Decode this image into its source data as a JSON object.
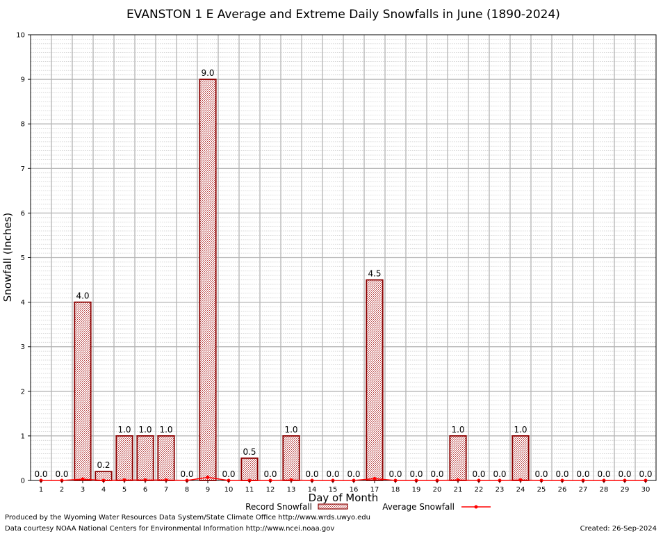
{
  "chart_data": {
    "type": "bar",
    "title": "EVANSTON 1 E Average and Extreme Daily Snowfalls in June (1890-2024)",
    "xlabel": "Day of Month",
    "ylabel": "Snowfall (Inches)",
    "ylim": [
      0,
      10
    ],
    "yticks": [
      "0",
      "1",
      "2",
      "3",
      "4",
      "5",
      "6",
      "7",
      "8",
      "9",
      "10"
    ],
    "categories": [
      "1",
      "2",
      "3",
      "4",
      "5",
      "6",
      "7",
      "8",
      "9",
      "10",
      "11",
      "12",
      "13",
      "14",
      "15",
      "16",
      "17",
      "18",
      "19",
      "20",
      "21",
      "22",
      "23",
      "24",
      "25",
      "26",
      "27",
      "28",
      "29",
      "30"
    ],
    "series": [
      {
        "name": "Record Snowfall",
        "type": "bar",
        "values": [
          0.0,
          0.0,
          4.0,
          0.2,
          1.0,
          1.0,
          1.0,
          0.0,
          9.0,
          0.0,
          0.5,
          0.0,
          1.0,
          0.0,
          0.0,
          0.0,
          4.5,
          0.0,
          0.0,
          0.0,
          1.0,
          0.0,
          0.0,
          1.0,
          0.0,
          0.0,
          0.0,
          0.0,
          0.0,
          0.0
        ],
        "labels": [
          "0.0",
          "0.0",
          "4.0",
          "0.2",
          "1.0",
          "1.0",
          "1.0",
          "0.0",
          "9.0",
          "0.0",
          "0.5",
          "0.0",
          "1.0",
          "0.0",
          "0.0",
          "0.0",
          "4.5",
          "0.0",
          "0.0",
          "0.0",
          "1.0",
          "0.0",
          "0.0",
          "1.0",
          "0.0",
          "0.0",
          "0.0",
          "0.0",
          "0.0",
          "0.0"
        ]
      },
      {
        "name": "Average Snowfall",
        "type": "line",
        "values": [
          0.0,
          0.0,
          0.03,
          0.0,
          0.01,
          0.01,
          0.01,
          0.0,
          0.07,
          0.0,
          0.0,
          0.0,
          0.01,
          0.0,
          0.0,
          0.0,
          0.04,
          0.0,
          0.0,
          0.0,
          0.01,
          0.0,
          0.0,
          0.01,
          0.0,
          0.0,
          0.0,
          0.0,
          0.0,
          0.0
        ]
      }
    ],
    "grid": true,
    "legend": "bottom-center",
    "colors": {
      "bar_outline": "#8b0000",
      "bar_pattern": "#b84040",
      "average_line": "#ff0000",
      "grid_major": "#b4b4b4",
      "grid_minor": "#cfcfcf"
    }
  },
  "footer": {
    "produced_by": "Produced by the Wyoming Water Resources Data System/State Climate Office http://www.wrds.uwyo.edu",
    "data_courtesy": "Data courtesy NOAA National Centers for Environmental Information http://www.ncei.noaa.gov",
    "created": "Created: 26-Sep-2024"
  }
}
